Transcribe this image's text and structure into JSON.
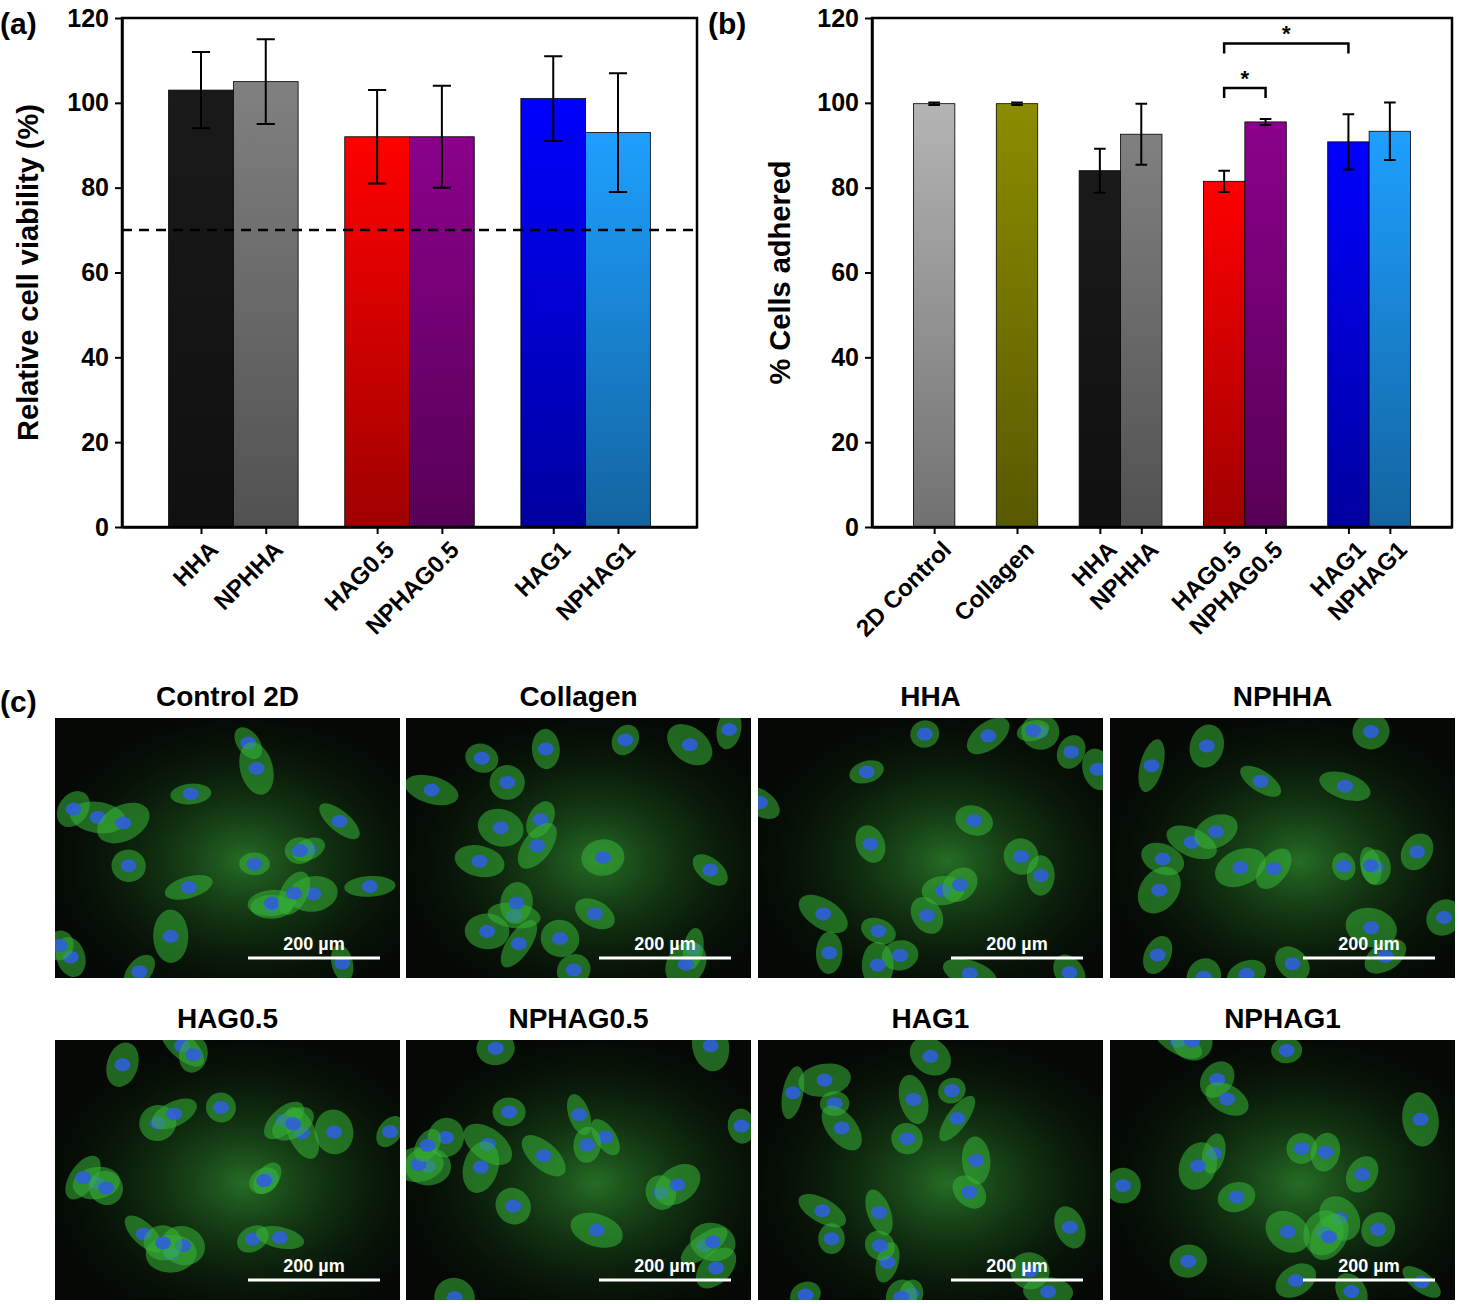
{
  "chart_data": [
    {
      "panel_label": "(a)",
      "type": "bar",
      "y_label": "Relative cell viability (%)",
      "categories": [
        "HHA",
        "NPHHA",
        "HAG0.5",
        "NPHAG0.5",
        "HAG1",
        "NPHAG1"
      ],
      "values": [
        103,
        105,
        92,
        92,
        101,
        93
      ],
      "errors": [
        9,
        10,
        11,
        12,
        10,
        14
      ],
      "colors": [
        "#1a1a1a",
        "#808080",
        "#ff0000",
        "#8b008b",
        "#0000ff",
        "#1e9fff"
      ],
      "ylim": [
        0,
        120
      ],
      "yticks": [
        0,
        20,
        40,
        60,
        80,
        100,
        120
      ],
      "threshold": 70
    },
    {
      "panel_label": "(b)",
      "type": "bar",
      "y_label": "% Cells adhered",
      "categories": [
        "2D Control",
        "Collagen",
        "HHA",
        "NPHHA",
        "HAG0.5",
        "NPHAG0.5",
        "HAG1",
        "NPHAG1"
      ],
      "values": [
        99.8,
        99.8,
        84,
        92.6,
        81.5,
        95.5,
        90.8,
        93.3
      ],
      "errors": [
        0.3,
        0.3,
        5.2,
        7.2,
        2.5,
        0.7,
        6.5,
        6.8
      ],
      "colors": [
        "#b4b4b4",
        "#8c8c00",
        "#1a1a1a",
        "#808080",
        "#ff0000",
        "#8b008b",
        "#0000ff",
        "#1e9fff"
      ],
      "ylim": [
        0,
        120
      ],
      "yticks": [
        0,
        20,
        40,
        60,
        80,
        100,
        120
      ],
      "significance": [
        {
          "from": "HAG0.5",
          "to": "NPHAG0.5",
          "y": 103.5,
          "label": "*"
        },
        {
          "from": "HAG0.5",
          "to": "HAG1",
          "y": 114,
          "label": "*"
        }
      ]
    }
  ],
  "panel_c": {
    "panel_label": "(c)",
    "images": [
      {
        "title": "Control 2D",
        "scale_bar": "200 µm"
      },
      {
        "title": "Collagen",
        "scale_bar": "200 µm"
      },
      {
        "title": "HHA",
        "scale_bar": "200 µm"
      },
      {
        "title": "NPHHA",
        "scale_bar": "200 µm"
      },
      {
        "title": "HAG0.5",
        "scale_bar": "200 µm"
      },
      {
        "title": "NPHAG0.5",
        "scale_bar": "200 µm"
      },
      {
        "title": "HAG1",
        "scale_bar": "200 µm"
      },
      {
        "title": "NPHAG1",
        "scale_bar": "200 µm"
      }
    ]
  }
}
